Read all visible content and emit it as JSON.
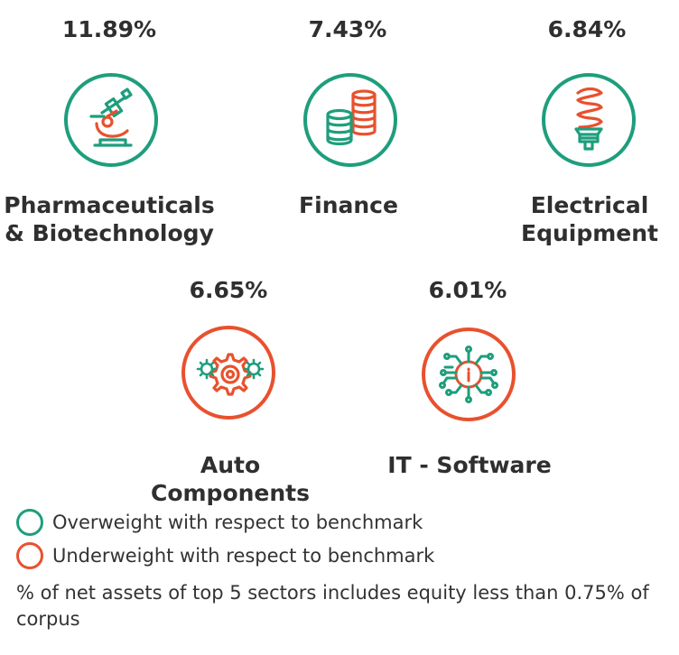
{
  "colors": {
    "overweight": "#1e9e7c",
    "underweight": "#e8512e"
  },
  "sectors": [
    {
      "pct": "11.89%",
      "name_line1": "Pharmaceuticals",
      "name_line2": "& Biotechnology",
      "icon": "microscope-icon",
      "status": "overweight"
    },
    {
      "pct": "7.43%",
      "name_line1": "Finance",
      "name_line2": "",
      "icon": "coins-icon",
      "status": "overweight"
    },
    {
      "pct": "6.84%",
      "name_line1": "Electrical",
      "name_line2": "Equipment",
      "icon": "lightbulb-icon",
      "status": "overweight"
    },
    {
      "pct": "6.65%",
      "name_line1": "Auto",
      "name_line2": "Components",
      "icon": "gears-icon",
      "status": "underweight"
    },
    {
      "pct": "6.01%",
      "name_line1": "IT - Software",
      "name_line2": "",
      "icon": "circuit-icon",
      "status": "underweight"
    }
  ],
  "legend": {
    "overweight_label": "Overweight with respect to benchmark",
    "underweight_label": "Underweight with respect to benchmark"
  },
  "footnote": "% of net assets of top 5 sectors includes equity less than 0.75% of corpus"
}
